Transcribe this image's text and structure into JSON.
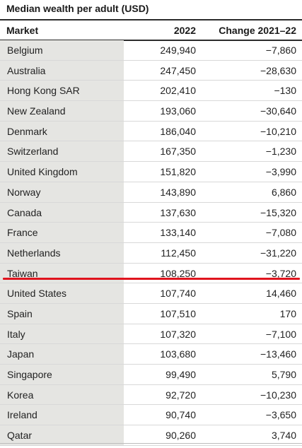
{
  "chart_data": {
    "type": "table",
    "title": "Median wealth per adult (USD)",
    "columns": [
      "Market",
      "2022",
      "Change 2021–22"
    ],
    "rows": [
      {
        "market": "Belgium",
        "v2022": "249,940",
        "change": "−7,860"
      },
      {
        "market": "Australia",
        "v2022": "247,450",
        "change": "−28,630"
      },
      {
        "market": "Hong Kong SAR",
        "v2022": "202,410",
        "change": "−130"
      },
      {
        "market": "New Zealand",
        "v2022": "193,060",
        "change": "−30,640"
      },
      {
        "market": "Denmark",
        "v2022": "186,040",
        "change": "−10,210"
      },
      {
        "market": "Switzerland",
        "v2022": "167,350",
        "change": "−1,230"
      },
      {
        "market": "United Kingdom",
        "v2022": "151,820",
        "change": "−3,990"
      },
      {
        "market": "Norway",
        "v2022": "143,890",
        "change": "6,860"
      },
      {
        "market": "Canada",
        "v2022": "137,630",
        "change": "−15,320"
      },
      {
        "market": "France",
        "v2022": "133,140",
        "change": "−7,080"
      },
      {
        "market": "Netherlands",
        "v2022": "112,450",
        "change": "−31,220"
      },
      {
        "market": "Taiwan",
        "v2022": "108,250",
        "change": "−3,720"
      },
      {
        "market": "United States",
        "v2022": "107,740",
        "change": "14,460"
      },
      {
        "market": "Spain",
        "v2022": "107,510",
        "change": "170"
      },
      {
        "market": "Italy",
        "v2022": "107,320",
        "change": "−7,100"
      },
      {
        "market": "Japan",
        "v2022": "103,680",
        "change": "−13,460"
      },
      {
        "market": "Singapore",
        "v2022": "99,490",
        "change": "5,790"
      },
      {
        "market": "Korea",
        "v2022": "92,720",
        "change": "−10,230"
      },
      {
        "market": "Ireland",
        "v2022": "90,740",
        "change": "−3,650"
      },
      {
        "market": "Qatar",
        "v2022": "90,260",
        "change": "3,740"
      }
    ],
    "highlight": {
      "row": "Taiwan",
      "color": "#e0141e",
      "style": "red underline"
    },
    "market_column_shade": "#e5e5e2"
  }
}
